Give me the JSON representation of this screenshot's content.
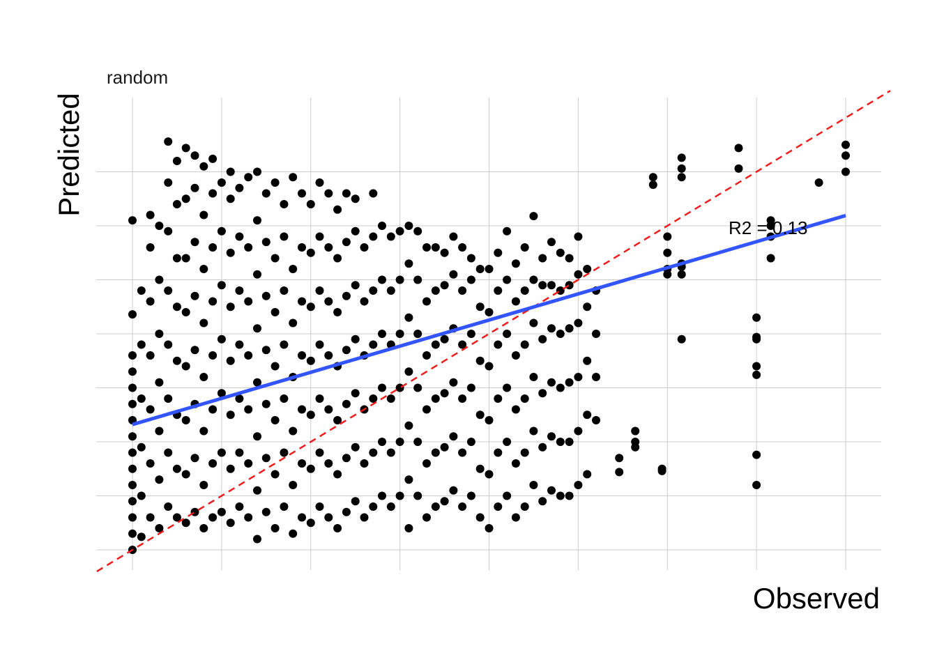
{
  "chart_data": {
    "type": "scatter",
    "subtitle": "random",
    "xlabel": "Observed",
    "ylabel": "Predicted",
    "xlim": [
      -0.2,
      4.2
    ],
    "ylim": [
      -0.1,
      4.05
    ],
    "grid": true,
    "tick_labels_shown": false,
    "annotation": {
      "text": "R2 = 0.13",
      "x": 3.6,
      "y": 3.1
    },
    "identity_line": {
      "intercept": 0,
      "slope": 1,
      "color": "#ee1c1c",
      "style": "dashed"
    },
    "fit_line": {
      "intercept": 1.16,
      "slope": 0.4837,
      "color": "#3355ff"
    },
    "point_color": "#000000",
    "points": [
      [
        0.0,
        0.0
      ],
      [
        0.0,
        0.15
      ],
      [
        0.0,
        0.3
      ],
      [
        0.0,
        0.45
      ],
      [
        0.0,
        0.6
      ],
      [
        0.0,
        0.75
      ],
      [
        0.0,
        0.9
      ],
      [
        0.0,
        1.05
      ],
      [
        0.0,
        1.2
      ],
      [
        0.0,
        1.35
      ],
      [
        0.0,
        1.5
      ],
      [
        0.0,
        1.65
      ],
      [
        0.0,
        1.8
      ],
      [
        0.0,
        2.18
      ],
      [
        0.0,
        3.05
      ],
      [
        0.05,
        0.12
      ],
      [
        0.05,
        0.5
      ],
      [
        0.05,
        0.95
      ],
      [
        0.05,
        1.4
      ],
      [
        0.05,
        1.9
      ],
      [
        0.05,
        2.4
      ],
      [
        0.1,
        0.3
      ],
      [
        0.1,
        0.8
      ],
      [
        0.1,
        1.3
      ],
      [
        0.1,
        1.8
      ],
      [
        0.1,
        2.3
      ],
      [
        0.1,
        2.8
      ],
      [
        0.1,
        3.1
      ],
      [
        0.15,
        0.2
      ],
      [
        0.15,
        0.65
      ],
      [
        0.15,
        1.1
      ],
      [
        0.15,
        1.55
      ],
      [
        0.15,
        2.0
      ],
      [
        0.15,
        2.5
      ],
      [
        0.15,
        3.0
      ],
      [
        0.2,
        0.4
      ],
      [
        0.2,
        0.9
      ],
      [
        0.2,
        1.4
      ],
      [
        0.2,
        1.9
      ],
      [
        0.2,
        2.4
      ],
      [
        0.2,
        2.95
      ],
      [
        0.2,
        3.4
      ],
      [
        0.2,
        3.78
      ],
      [
        0.25,
        0.3
      ],
      [
        0.25,
        0.75
      ],
      [
        0.25,
        1.25
      ],
      [
        0.25,
        1.75
      ],
      [
        0.25,
        2.25
      ],
      [
        0.25,
        2.7
      ],
      [
        0.25,
        3.2
      ],
      [
        0.25,
        3.6
      ],
      [
        0.3,
        0.25
      ],
      [
        0.3,
        0.7
      ],
      [
        0.3,
        1.2
      ],
      [
        0.3,
        1.7
      ],
      [
        0.3,
        2.2
      ],
      [
        0.3,
        2.7
      ],
      [
        0.3,
        3.25
      ],
      [
        0.3,
        3.72
      ],
      [
        0.35,
        0.35
      ],
      [
        0.35,
        0.85
      ],
      [
        0.35,
        1.35
      ],
      [
        0.35,
        1.85
      ],
      [
        0.35,
        2.35
      ],
      [
        0.35,
        2.85
      ],
      [
        0.35,
        3.35
      ],
      [
        0.35,
        3.65
      ],
      [
        0.4,
        0.2
      ],
      [
        0.4,
        0.6
      ],
      [
        0.4,
        1.1
      ],
      [
        0.4,
        1.6
      ],
      [
        0.4,
        2.1
      ],
      [
        0.4,
        2.6
      ],
      [
        0.4,
        3.1
      ],
      [
        0.4,
        3.55
      ],
      [
        0.45,
        0.3
      ],
      [
        0.45,
        0.8
      ],
      [
        0.45,
        1.3
      ],
      [
        0.45,
        1.8
      ],
      [
        0.45,
        2.3
      ],
      [
        0.45,
        2.8
      ],
      [
        0.45,
        3.3
      ],
      [
        0.45,
        3.62
      ],
      [
        0.5,
        0.35
      ],
      [
        0.5,
        0.9
      ],
      [
        0.5,
        1.45
      ],
      [
        0.5,
        1.95
      ],
      [
        0.5,
        2.45
      ],
      [
        0.5,
        2.95
      ],
      [
        0.5,
        3.4
      ],
      [
        0.55,
        0.25
      ],
      [
        0.55,
        0.75
      ],
      [
        0.55,
        1.25
      ],
      [
        0.55,
        1.75
      ],
      [
        0.55,
        2.25
      ],
      [
        0.55,
        2.75
      ],
      [
        0.55,
        3.25
      ],
      [
        0.55,
        3.5
      ],
      [
        0.6,
        0.4
      ],
      [
        0.6,
        0.9
      ],
      [
        0.6,
        1.4
      ],
      [
        0.6,
        1.9
      ],
      [
        0.6,
        2.4
      ],
      [
        0.6,
        2.9
      ],
      [
        0.6,
        3.35
      ],
      [
        0.65,
        0.3
      ],
      [
        0.65,
        0.8
      ],
      [
        0.65,
        1.3
      ],
      [
        0.65,
        1.8
      ],
      [
        0.65,
        2.3
      ],
      [
        0.65,
        2.8
      ],
      [
        0.65,
        3.45
      ],
      [
        0.7,
        0.1
      ],
      [
        0.7,
        0.55
      ],
      [
        0.7,
        1.05
      ],
      [
        0.7,
        1.55
      ],
      [
        0.7,
        2.05
      ],
      [
        0.7,
        2.55
      ],
      [
        0.7,
        3.05
      ],
      [
        0.7,
        3.5
      ],
      [
        0.75,
        0.35
      ],
      [
        0.75,
        0.85
      ],
      [
        0.75,
        1.35
      ],
      [
        0.75,
        1.85
      ],
      [
        0.75,
        2.35
      ],
      [
        0.75,
        2.85
      ],
      [
        0.75,
        3.3
      ],
      [
        0.8,
        0.2
      ],
      [
        0.8,
        0.7
      ],
      [
        0.8,
        1.2
      ],
      [
        0.8,
        1.7
      ],
      [
        0.8,
        2.2
      ],
      [
        0.8,
        2.7
      ],
      [
        0.8,
        3.4
      ],
      [
        0.85,
        0.4
      ],
      [
        0.85,
        0.9
      ],
      [
        0.85,
        1.4
      ],
      [
        0.85,
        1.9
      ],
      [
        0.85,
        2.4
      ],
      [
        0.85,
        2.9
      ],
      [
        0.85,
        3.2
      ],
      [
        0.9,
        0.15
      ],
      [
        0.9,
        0.6
      ],
      [
        0.9,
        1.1
      ],
      [
        0.9,
        1.6
      ],
      [
        0.9,
        2.1
      ],
      [
        0.9,
        2.6
      ],
      [
        0.9,
        3.45
      ],
      [
        0.95,
        0.3
      ],
      [
        0.95,
        0.8
      ],
      [
        0.95,
        1.3
      ],
      [
        0.95,
        1.8
      ],
      [
        0.95,
        2.3
      ],
      [
        0.95,
        2.8
      ],
      [
        0.95,
        3.3
      ],
      [
        1.0,
        0.25
      ],
      [
        1.0,
        0.75
      ],
      [
        1.0,
        1.25
      ],
      [
        1.0,
        1.75
      ],
      [
        1.0,
        2.25
      ],
      [
        1.0,
        2.75
      ],
      [
        1.0,
        3.2
      ],
      [
        1.05,
        0.4
      ],
      [
        1.05,
        0.9
      ],
      [
        1.05,
        1.4
      ],
      [
        1.05,
        1.9
      ],
      [
        1.05,
        2.4
      ],
      [
        1.05,
        2.9
      ],
      [
        1.05,
        3.4
      ],
      [
        1.1,
        0.3
      ],
      [
        1.1,
        0.8
      ],
      [
        1.1,
        1.3
      ],
      [
        1.1,
        1.8
      ],
      [
        1.1,
        2.3
      ],
      [
        1.1,
        2.8
      ],
      [
        1.1,
        3.3
      ],
      [
        1.15,
        0.2
      ],
      [
        1.15,
        0.7
      ],
      [
        1.15,
        1.2
      ],
      [
        1.15,
        1.7
      ],
      [
        1.15,
        2.2
      ],
      [
        1.15,
        2.7
      ],
      [
        1.15,
        3.15
      ],
      [
        1.2,
        0.35
      ],
      [
        1.2,
        0.85
      ],
      [
        1.2,
        1.35
      ],
      [
        1.2,
        1.85
      ],
      [
        1.2,
        2.35
      ],
      [
        1.2,
        2.85
      ],
      [
        1.2,
        3.3
      ],
      [
        1.25,
        0.45
      ],
      [
        1.25,
        0.95
      ],
      [
        1.25,
        1.45
      ],
      [
        1.25,
        1.95
      ],
      [
        1.25,
        2.45
      ],
      [
        1.25,
        2.95
      ],
      [
        1.25,
        3.25
      ],
      [
        1.3,
        0.3
      ],
      [
        1.3,
        0.8
      ],
      [
        1.3,
        1.3
      ],
      [
        1.3,
        1.8
      ],
      [
        1.3,
        2.3
      ],
      [
        1.3,
        2.8
      ],
      [
        1.35,
        0.4
      ],
      [
        1.35,
        0.9
      ],
      [
        1.35,
        1.4
      ],
      [
        1.35,
        1.9
      ],
      [
        1.35,
        2.4
      ],
      [
        1.35,
        2.9
      ],
      [
        1.35,
        3.3
      ],
      [
        1.4,
        0.5
      ],
      [
        1.4,
        1.0
      ],
      [
        1.4,
        1.5
      ],
      [
        1.4,
        2.0
      ],
      [
        1.4,
        2.5
      ],
      [
        1.4,
        3.0
      ],
      [
        1.45,
        0.4
      ],
      [
        1.45,
        0.9
      ],
      [
        1.45,
        1.4
      ],
      [
        1.45,
        1.9
      ],
      [
        1.45,
        2.4
      ],
      [
        1.45,
        2.9
      ],
      [
        1.5,
        0.5
      ],
      [
        1.5,
        1.0
      ],
      [
        1.5,
        1.5
      ],
      [
        1.5,
        2.0
      ],
      [
        1.5,
        2.5
      ],
      [
        1.5,
        2.95
      ],
      [
        1.55,
        0.2
      ],
      [
        1.55,
        0.65
      ],
      [
        1.55,
        1.15
      ],
      [
        1.55,
        1.65
      ],
      [
        1.55,
        2.15
      ],
      [
        1.55,
        2.65
      ],
      [
        1.55,
        3.0
      ],
      [
        1.6,
        0.5
      ],
      [
        1.6,
        1.0
      ],
      [
        1.6,
        1.5
      ],
      [
        1.6,
        2.0
      ],
      [
        1.6,
        2.5
      ],
      [
        1.6,
        2.95
      ],
      [
        1.65,
        0.3
      ],
      [
        1.65,
        0.8
      ],
      [
        1.65,
        1.3
      ],
      [
        1.65,
        1.8
      ],
      [
        1.65,
        2.3
      ],
      [
        1.65,
        2.8
      ],
      [
        1.7,
        0.4
      ],
      [
        1.7,
        0.9
      ],
      [
        1.7,
        1.4
      ],
      [
        1.7,
        1.9
      ],
      [
        1.7,
        2.4
      ],
      [
        1.7,
        2.8
      ],
      [
        1.75,
        0.45
      ],
      [
        1.75,
        0.95
      ],
      [
        1.75,
        1.45
      ],
      [
        1.75,
        1.95
      ],
      [
        1.75,
        2.45
      ],
      [
        1.75,
        2.75
      ],
      [
        1.8,
        0.55
      ],
      [
        1.8,
        1.05
      ],
      [
        1.8,
        1.55
      ],
      [
        1.8,
        2.05
      ],
      [
        1.8,
        2.55
      ],
      [
        1.8,
        2.9
      ],
      [
        1.85,
        0.4
      ],
      [
        1.85,
        0.9
      ],
      [
        1.85,
        1.4
      ],
      [
        1.85,
        1.9
      ],
      [
        1.85,
        2.4
      ],
      [
        1.85,
        2.8
      ],
      [
        1.9,
        0.5
      ],
      [
        1.9,
        1.0
      ],
      [
        1.9,
        1.5
      ],
      [
        1.9,
        2.0
      ],
      [
        1.9,
        2.5
      ],
      [
        1.9,
        2.7
      ],
      [
        1.95,
        0.3
      ],
      [
        1.95,
        0.75
      ],
      [
        1.95,
        1.25
      ],
      [
        1.95,
        1.75
      ],
      [
        1.95,
        2.25
      ],
      [
        1.95,
        2.6
      ],
      [
        2.0,
        0.2
      ],
      [
        2.0,
        0.7
      ],
      [
        2.0,
        1.2
      ],
      [
        2.0,
        1.7
      ],
      [
        2.0,
        2.2
      ],
      [
        2.0,
        2.6
      ],
      [
        2.05,
        0.4
      ],
      [
        2.05,
        0.9
      ],
      [
        2.05,
        1.4
      ],
      [
        2.05,
        1.9
      ],
      [
        2.05,
        2.4
      ],
      [
        2.05,
        2.75
      ],
      [
        2.1,
        0.5
      ],
      [
        2.1,
        1.0
      ],
      [
        2.1,
        1.5
      ],
      [
        2.1,
        2.0
      ],
      [
        2.1,
        2.5
      ],
      [
        2.1,
        2.95
      ],
      [
        2.15,
        0.3
      ],
      [
        2.15,
        0.8
      ],
      [
        2.15,
        1.3
      ],
      [
        2.15,
        1.8
      ],
      [
        2.15,
        2.3
      ],
      [
        2.15,
        2.65
      ],
      [
        2.2,
        0.4
      ],
      [
        2.2,
        0.9
      ],
      [
        2.2,
        1.4
      ],
      [
        2.2,
        1.9
      ],
      [
        2.2,
        2.4
      ],
      [
        2.2,
        2.8
      ],
      [
        2.25,
        0.6
      ],
      [
        2.25,
        1.1
      ],
      [
        2.25,
        1.6
      ],
      [
        2.25,
        2.1
      ],
      [
        2.25,
        2.5
      ],
      [
        2.25,
        3.09
      ],
      [
        2.3,
        0.45
      ],
      [
        2.3,
        0.95
      ],
      [
        2.3,
        1.45
      ],
      [
        2.3,
        1.95
      ],
      [
        2.3,
        2.45
      ],
      [
        2.3,
        2.7
      ],
      [
        2.35,
        0.55
      ],
      [
        2.35,
        1.05
      ],
      [
        2.35,
        1.55
      ],
      [
        2.35,
        2.05
      ],
      [
        2.35,
        2.45
      ],
      [
        2.35,
        2.85
      ],
      [
        2.4,
        0.5
      ],
      [
        2.4,
        1.0
      ],
      [
        2.4,
        1.5
      ],
      [
        2.4,
        2.0
      ],
      [
        2.4,
        2.4
      ],
      [
        2.4,
        2.75
      ],
      [
        2.45,
        0.5
      ],
      [
        2.45,
        1.0
      ],
      [
        2.45,
        1.55
      ],
      [
        2.45,
        2.05
      ],
      [
        2.45,
        2.45
      ],
      [
        2.45,
        2.7
      ],
      [
        2.5,
        0.6
      ],
      [
        2.5,
        1.1
      ],
      [
        2.5,
        1.6
      ],
      [
        2.5,
        2.1
      ],
      [
        2.5,
        2.55
      ],
      [
        2.5,
        2.9
      ],
      [
        2.55,
        0.7
      ],
      [
        2.55,
        1.25
      ],
      [
        2.55,
        1.75
      ],
      [
        2.55,
        2.25
      ],
      [
        2.55,
        2.6
      ],
      [
        2.6,
        1.2
      ],
      [
        2.6,
        1.6
      ],
      [
        2.6,
        2.0
      ],
      [
        2.6,
        2.4
      ],
      [
        2.73,
        0.72
      ],
      [
        2.73,
        0.85
      ],
      [
        2.82,
        1.1
      ],
      [
        2.82,
        1.0
      ],
      [
        2.82,
        0.95
      ],
      [
        2.97,
        0.73
      ],
      [
        2.97,
        0.75
      ],
      [
        2.92,
        3.45
      ],
      [
        2.92,
        3.38
      ],
      [
        3.0,
        2.75
      ],
      [
        3.0,
        2.55
      ],
      [
        3.0,
        2.6
      ],
      [
        3.0,
        2.9
      ],
      [
        3.08,
        2.55
      ],
      [
        3.08,
        2.65
      ],
      [
        3.08,
        2.62
      ],
      [
        3.08,
        3.45
      ],
      [
        3.08,
        3.53
      ],
      [
        3.08,
        3.63
      ],
      [
        3.08,
        1.95
      ],
      [
        3.4,
        3.53
      ],
      [
        3.4,
        3.72
      ],
      [
        3.5,
        0.6
      ],
      [
        3.5,
        0.88
      ],
      [
        3.5,
        1.62
      ],
      [
        3.5,
        1.7
      ],
      [
        3.5,
        1.95
      ],
      [
        3.5,
        1.97
      ],
      [
        3.5,
        2.15
      ],
      [
        3.58,
        2.9
      ],
      [
        3.58,
        3.0
      ],
      [
        3.58,
        3.05
      ],
      [
        3.58,
        2.7
      ],
      [
        3.85,
        3.4
      ],
      [
        4.0,
        3.5
      ],
      [
        4.0,
        3.65
      ],
      [
        4.0,
        3.75
      ]
    ]
  }
}
